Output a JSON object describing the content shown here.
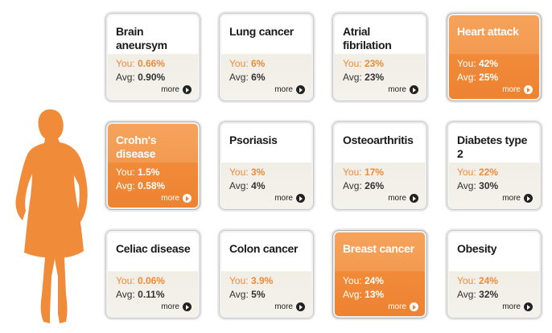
{
  "colors": {
    "accent": "#ef8a36",
    "highlight_card": "#f08b3a"
  },
  "more_label": "more",
  "you_prefix": "You:",
  "avg_prefix": "Avg:",
  "cards": [
    {
      "title": "Brain aneursym",
      "you": "0.66%",
      "avg": "0.90%",
      "highlight": false
    },
    {
      "title": "Lung cancer",
      "you": "6%",
      "avg": "6%",
      "highlight": false
    },
    {
      "title": "Atrial fibrilation",
      "you": "23%",
      "avg": "23%",
      "highlight": false
    },
    {
      "title": "Heart attack",
      "you": "42%",
      "avg": "25%",
      "highlight": true
    },
    {
      "title": "Crohn's disease",
      "you": "1.5%",
      "avg": "0.58%",
      "highlight": true
    },
    {
      "title": "Psoriasis",
      "you": "3%",
      "avg": "4%",
      "highlight": false
    },
    {
      "title": "Osteoarthritis",
      "you": "17%",
      "avg": "26%",
      "highlight": false
    },
    {
      "title": "Diabetes type 2",
      "you": "22%",
      "avg": "30%",
      "highlight": false
    },
    {
      "title": "Celiac disease",
      "you": "0.06%",
      "avg": "0.11%",
      "highlight": false
    },
    {
      "title": "Colon cancer",
      "you": "3.9%",
      "avg": "5%",
      "highlight": false
    },
    {
      "title": "Breast cancer",
      "you": "24%",
      "avg": "13%",
      "highlight": true
    },
    {
      "title": "Obesity",
      "you": "24%",
      "avg": "32%",
      "highlight": false
    }
  ]
}
